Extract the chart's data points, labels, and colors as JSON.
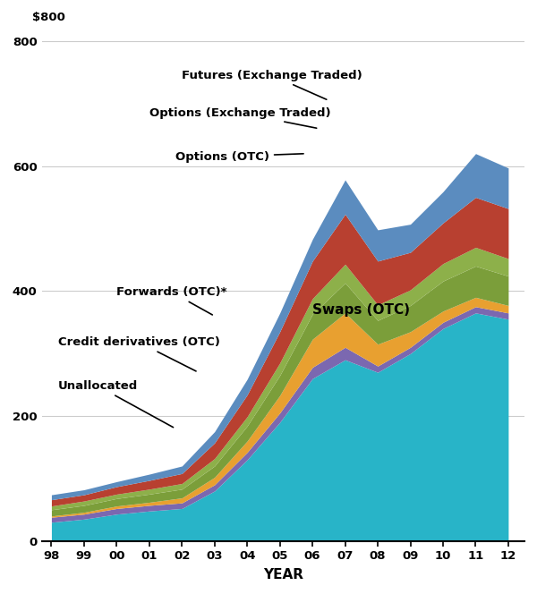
{
  "year_labels": [
    "98",
    "99",
    "00",
    "01",
    "02",
    "03",
    "04",
    "05",
    "06",
    "07",
    "08",
    "09",
    "10",
    "11",
    "12"
  ],
  "swaps": [
    30,
    35,
    43,
    48,
    52,
    80,
    130,
    190,
    260,
    290,
    270,
    300,
    340,
    365,
    355
  ],
  "unallocated": [
    8,
    8,
    9,
    9,
    9,
    10,
    12,
    15,
    18,
    20,
    10,
    10,
    10,
    10,
    10
  ],
  "credit_deriv": [
    2,
    3,
    4,
    5,
    8,
    12,
    18,
    28,
    45,
    55,
    35,
    25,
    18,
    15,
    12
  ],
  "forwards": [
    10,
    11,
    12,
    13,
    14,
    18,
    24,
    32,
    40,
    48,
    38,
    42,
    48,
    50,
    47
  ],
  "options_otc": [
    6,
    7,
    7,
    8,
    9,
    12,
    15,
    20,
    25,
    30,
    25,
    25,
    28,
    30,
    28
  ],
  "options_exch": [
    10,
    10,
    12,
    14,
    16,
    25,
    35,
    50,
    60,
    80,
    70,
    60,
    65,
    80,
    80
  ],
  "futures_exch": [
    8,
    8,
    8,
    10,
    12,
    18,
    25,
    30,
    35,
    55,
    50,
    45,
    50,
    70,
    65
  ],
  "color_swaps": "#28b4c8",
  "color_unallocated": "#7b68b0",
  "color_credit": "#e8a030",
  "color_forwards": "#7b9e3a",
  "color_options_otc": "#8db04a",
  "color_options_exch": "#b84030",
  "color_futures": "#5b8cbf",
  "xlabel": "YEAR",
  "yticks": [
    0,
    200,
    400,
    600,
    800
  ],
  "ylim": [
    0,
    820
  ],
  "xlim": [
    -0.3,
    14.5
  ]
}
